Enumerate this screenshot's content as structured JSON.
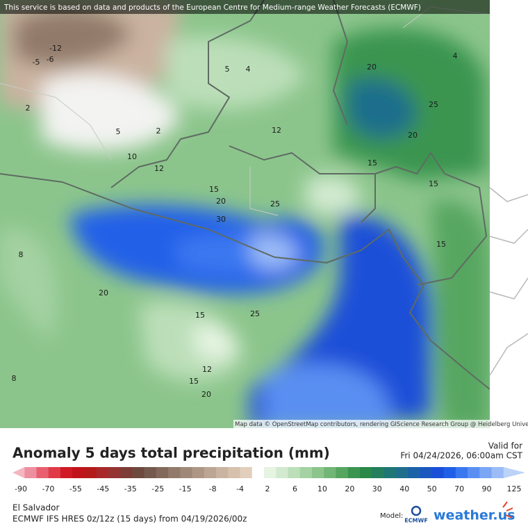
{
  "header": {
    "attribution": "This service is based on data and products of the European Centre for Medium-range Weather Forecasts (ECMWF)"
  },
  "map": {
    "credit": "Map data © OpenStreetMap contributors, rendering GIScience Research Group @ Heidelberg University",
    "contour_labels": [
      "-12",
      "-5",
      "-6",
      "5",
      "4",
      "20",
      "4",
      "2",
      "5",
      "2",
      "12",
      "25",
      "20",
      "10",
      "12",
      "15",
      "20",
      "25",
      "15",
      "30",
      "15",
      "8",
      "20",
      "15",
      "25",
      "12",
      "15",
      "20",
      "8",
      "15"
    ]
  },
  "legend": {
    "title": "Anomaly 5 days total precipitation (mm)",
    "valid_label": "Valid for",
    "valid_time": "Fri 04/24/2026, 06:00am CST",
    "ticks": [
      -90,
      -70,
      -55,
      -45,
      -35,
      -25,
      -15,
      -8,
      -4,
      2,
      6,
      10,
      20,
      30,
      40,
      50,
      70,
      90,
      125
    ],
    "colors": [
      "#f4b6c0",
      "#ee8fa0",
      "#e8606f",
      "#e03a49",
      "#d01a25",
      "#c0141a",
      "#b51a1a",
      "#a8282a",
      "#953232",
      "#7e3c36",
      "#6e4a3e",
      "#735a4d",
      "#83695b",
      "#927a6b",
      "#a08878",
      "#ae9685",
      "#bca593",
      "#cab3a0",
      "#d6c1ad",
      "#e2cfbb",
      "#ffffff",
      "#e6f4e2",
      "#d2ead0",
      "#bcdfb9",
      "#a4d2a2",
      "#8cc58c",
      "#72b676",
      "#57a660",
      "#3b9550",
      "#2a8848",
      "#237f5e",
      "#1f7775",
      "#1f6e8c",
      "#1b63a6",
      "#1a58c0",
      "#1a4fd8",
      "#2060e8",
      "#3a78f0",
      "#5a8ff2",
      "#7aa6f4",
      "#9bbcf6",
      "#bcd3f8"
    ]
  },
  "footer": {
    "region": "El Salvador",
    "model_run": "ECMWF IFS HRES 0z/12z (15 days) from  04/19/2026/00z",
    "model_label": "Model:",
    "model_logo": "ECMWF",
    "brand": "weather.us"
  }
}
